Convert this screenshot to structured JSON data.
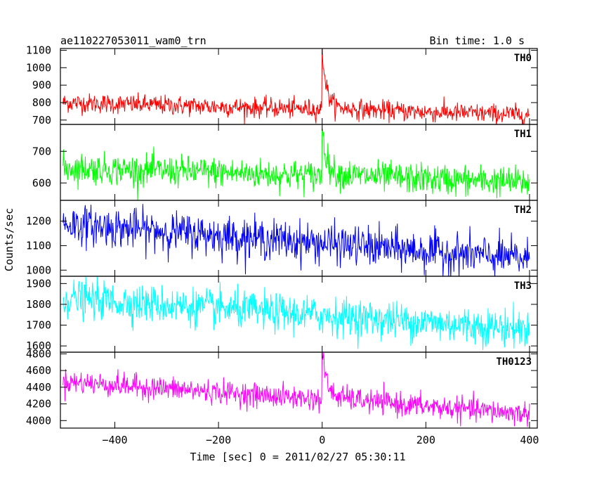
{
  "header": {
    "title": "ae110227053011_wam0_trn",
    "bin_time": "Bin time: 1.0 s"
  },
  "chart_data": {
    "type": "line",
    "xlabel": "Time [sec] 0 = 2011/02/27 05:30:11",
    "ylabel": "Counts/sec",
    "xlim": [
      -505,
      415
    ],
    "x_range": [
      -500,
      400
    ],
    "x_ticks": [
      -400,
      -200,
      0,
      200,
      400
    ],
    "x_tick_labels": [
      "−400",
      "−200",
      "0",
      "200",
      "400"
    ],
    "grid": false,
    "panels": [
      {
        "name": "TH0",
        "color": "#ff0000",
        "ylim": [
          675,
          1110
        ],
        "y_ticks": [
          700,
          800,
          900,
          1000,
          1100
        ],
        "y_tick_labels": [
          "700",
          "800",
          "900",
          "1000",
          "1100"
        ],
        "baseline_start": 800,
        "baseline_end": 730,
        "noise": 28,
        "spike_peak": 1110,
        "post_level": 790
      },
      {
        "name": "TH1",
        "color": "#00ff00",
        "ylim": [
          545,
          785
        ],
        "y_ticks": [
          600,
          700
        ],
        "y_tick_labels": [
          "600",
          "700"
        ],
        "baseline_start": 648,
        "baseline_end": 602,
        "noise": 24,
        "spike_peak": 780,
        "post_level": 640
      },
      {
        "name": "TH2",
        "color": "#0000ff",
        "ylim": [
          975,
          1285
        ],
        "y_ticks": [
          1000,
          1100,
          1200
        ],
        "y_tick_labels": [
          "1000",
          "1100",
          "1200"
        ],
        "baseline_start": 1190,
        "baseline_end": 1045,
        "noise": 40,
        "spike_peak": null,
        "post_level": null
      },
      {
        "name": "TH3",
        "color": "#00ffff",
        "ylim": [
          1570,
          1935
        ],
        "y_ticks": [
          1600,
          1700,
          1800,
          1900
        ],
        "y_tick_labels": [
          "1600",
          "1700",
          "1800",
          "1900"
        ],
        "baseline_start": 1830,
        "baseline_end": 1680,
        "noise": 45,
        "spike_peak": null,
        "post_level": null
      },
      {
        "name": "TH0123",
        "color": "#ff00ff",
        "ylim": [
          3910,
          4820
        ],
        "y_ticks": [
          4000,
          4200,
          4400,
          4600,
          4800
        ],
        "y_tick_labels": [
          "4000",
          "4200",
          "4400",
          "4600",
          "4800"
        ],
        "baseline_start": 4470,
        "baseline_end": 4080,
        "noise": 70,
        "spike_peak": 4810,
        "post_level": 4350
      }
    ]
  }
}
